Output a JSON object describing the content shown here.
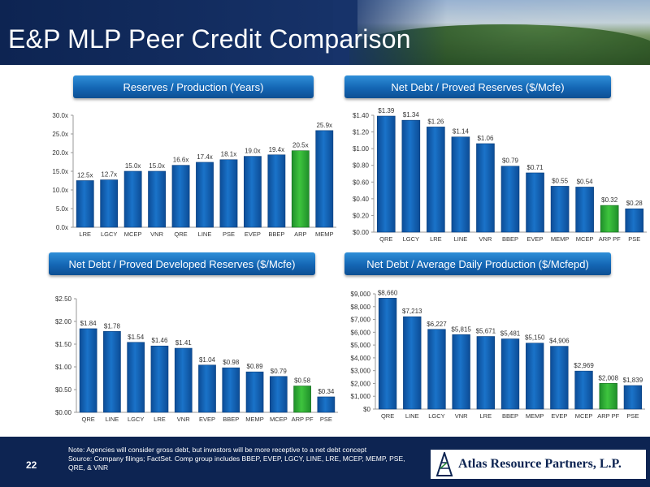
{
  "header": {
    "title": "E&P MLP Peer Credit Comparison"
  },
  "colors": {
    "bar": "#1a73c9",
    "highlight": "#3ec43e",
    "navy": "#0d2452",
    "panel": "#1466b4"
  },
  "footer": {
    "page_number": "22",
    "note": "Note: Agencies will consider gross debt, but investors will be more receptive to a net debt concept",
    "source": "Source: Company filings; FactSet.  Comp group includes BBEP, EVEP, LGCY, LINE, LRE, MCEP, MEMP, PSE, QRE, & VNR",
    "logo_text": "Atlas Resource Partners, L.P."
  },
  "chart_data": [
    {
      "type": "bar",
      "title": "Reserves / Production (Years)",
      "categories": [
        "LRE",
        "LGCY",
        "MCEP",
        "VNR",
        "QRE",
        "LINE",
        "PSE",
        "EVEP",
        "BBEP",
        "ARP",
        "MEMP"
      ],
      "values": [
        12.5,
        12.7,
        15.0,
        15.0,
        16.6,
        17.4,
        18.1,
        19.0,
        19.4,
        20.5,
        25.9
      ],
      "data_labels": [
        "12.5x",
        "12.7x",
        "15.0x",
        "15.0x",
        "16.6x",
        "17.4x",
        "18.1x",
        "19.0x",
        "19.4x",
        "20.5x",
        "25.9x"
      ],
      "highlight": "ARP",
      "ylim": [
        0,
        30
      ],
      "yticks": [
        "0.0x",
        "5.0x",
        "10.0x",
        "15.0x",
        "20.0x",
        "25.0x",
        "30.0x"
      ],
      "grid": false
    },
    {
      "type": "bar",
      "title": "Net Debt / Proved Reserves ($/Mcfe)",
      "categories": [
        "QRE",
        "LGCY",
        "LRE",
        "LINE",
        "VNR",
        "BBEP",
        "EVEP",
        "MEMP",
        "MCEP",
        "ARP PF",
        "PSE"
      ],
      "values": [
        1.39,
        1.34,
        1.26,
        1.14,
        1.06,
        0.79,
        0.71,
        0.55,
        0.54,
        0.32,
        0.28
      ],
      "data_labels": [
        "$1.39",
        "$1.34",
        "$1.26",
        "$1.14",
        "$1.06",
        "$0.79",
        "$0.71",
        "$0.55",
        "$0.54",
        "$0.32",
        "$0.28"
      ],
      "highlight": "ARP PF",
      "ylim": [
        0,
        1.4
      ],
      "yticks": [
        "$0.00",
        "$0.20",
        "$0.40",
        "$0.60",
        "$0.80",
        "$1.00",
        "$1.20",
        "$1.40"
      ],
      "grid": false
    },
    {
      "type": "bar",
      "title": "Net Debt / Proved Developed Reserves ($/Mcfe)",
      "categories": [
        "QRE",
        "LINE",
        "LGCY",
        "LRE",
        "VNR",
        "EVEP",
        "BBEP",
        "MEMP",
        "MCEP",
        "ARP PF",
        "PSE"
      ],
      "values": [
        1.84,
        1.78,
        1.54,
        1.46,
        1.41,
        1.04,
        0.98,
        0.89,
        0.79,
        0.58,
        0.34
      ],
      "data_labels": [
        "$1.84",
        "$1.78",
        "$1.54",
        "$1.46",
        "$1.41",
        "$1.04",
        "$0.98",
        "$0.89",
        "$0.79",
        "$0.58",
        "$0.34"
      ],
      "highlight": "ARP PF",
      "ylim": [
        0,
        2.5
      ],
      "yticks": [
        "$0.00",
        "$0.50",
        "$1.00",
        "$1.50",
        "$2.00",
        "$2.50"
      ],
      "grid": false
    },
    {
      "type": "bar",
      "title": "Net Debt / Average Daily Production ($/Mcfepd)",
      "categories": [
        "QRE",
        "LINE",
        "LGCY",
        "VNR",
        "LRE",
        "BBEP",
        "MEMP",
        "EVEP",
        "MCEP",
        "ARP PF",
        "PSE"
      ],
      "values": [
        8660,
        7213,
        6227,
        5815,
        5671,
        5481,
        5150,
        4906,
        2969,
        2008,
        1839
      ],
      "data_labels": [
        "$8,660",
        "$7,213",
        "$6,227",
        "$5,815",
        "$5,671",
        "$5,481",
        "$5,150",
        "$4,906",
        "$2,969",
        "$2,008",
        "$1,839"
      ],
      "highlight": "ARP PF",
      "ylim": [
        0,
        9000
      ],
      "yticks": [
        "$0",
        "$1,000",
        "$2,000",
        "$3,000",
        "$4,000",
        "$5,000",
        "$6,000",
        "$7,000",
        "$8,000",
        "$9,000"
      ],
      "grid": false
    }
  ]
}
